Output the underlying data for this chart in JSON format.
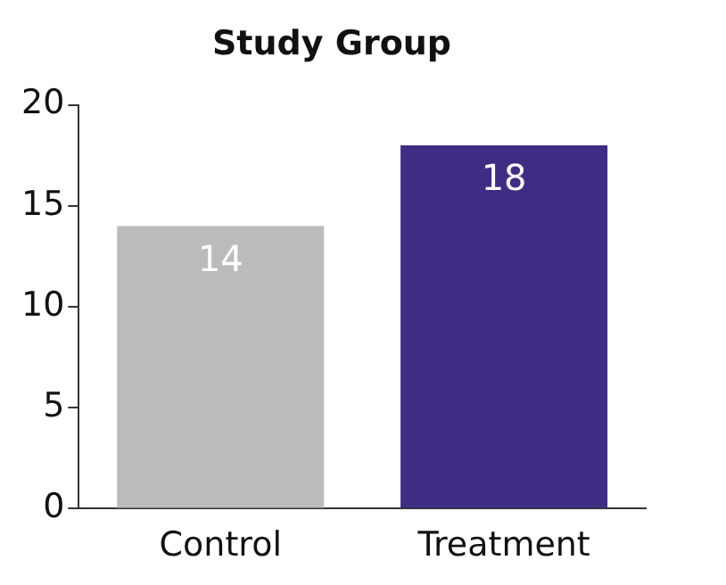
{
  "chart_data": {
    "type": "bar",
    "title": "Study Group",
    "categories": [
      "Control",
      "Treatment"
    ],
    "values": [
      14,
      18
    ],
    "colors": [
      "#bcbbbb",
      "#3f2d83"
    ],
    "ylim": [
      0,
      20
    ],
    "yticks": [
      0,
      5,
      10,
      15,
      20
    ],
    "grid": false,
    "legend": false,
    "data_labels": true
  }
}
